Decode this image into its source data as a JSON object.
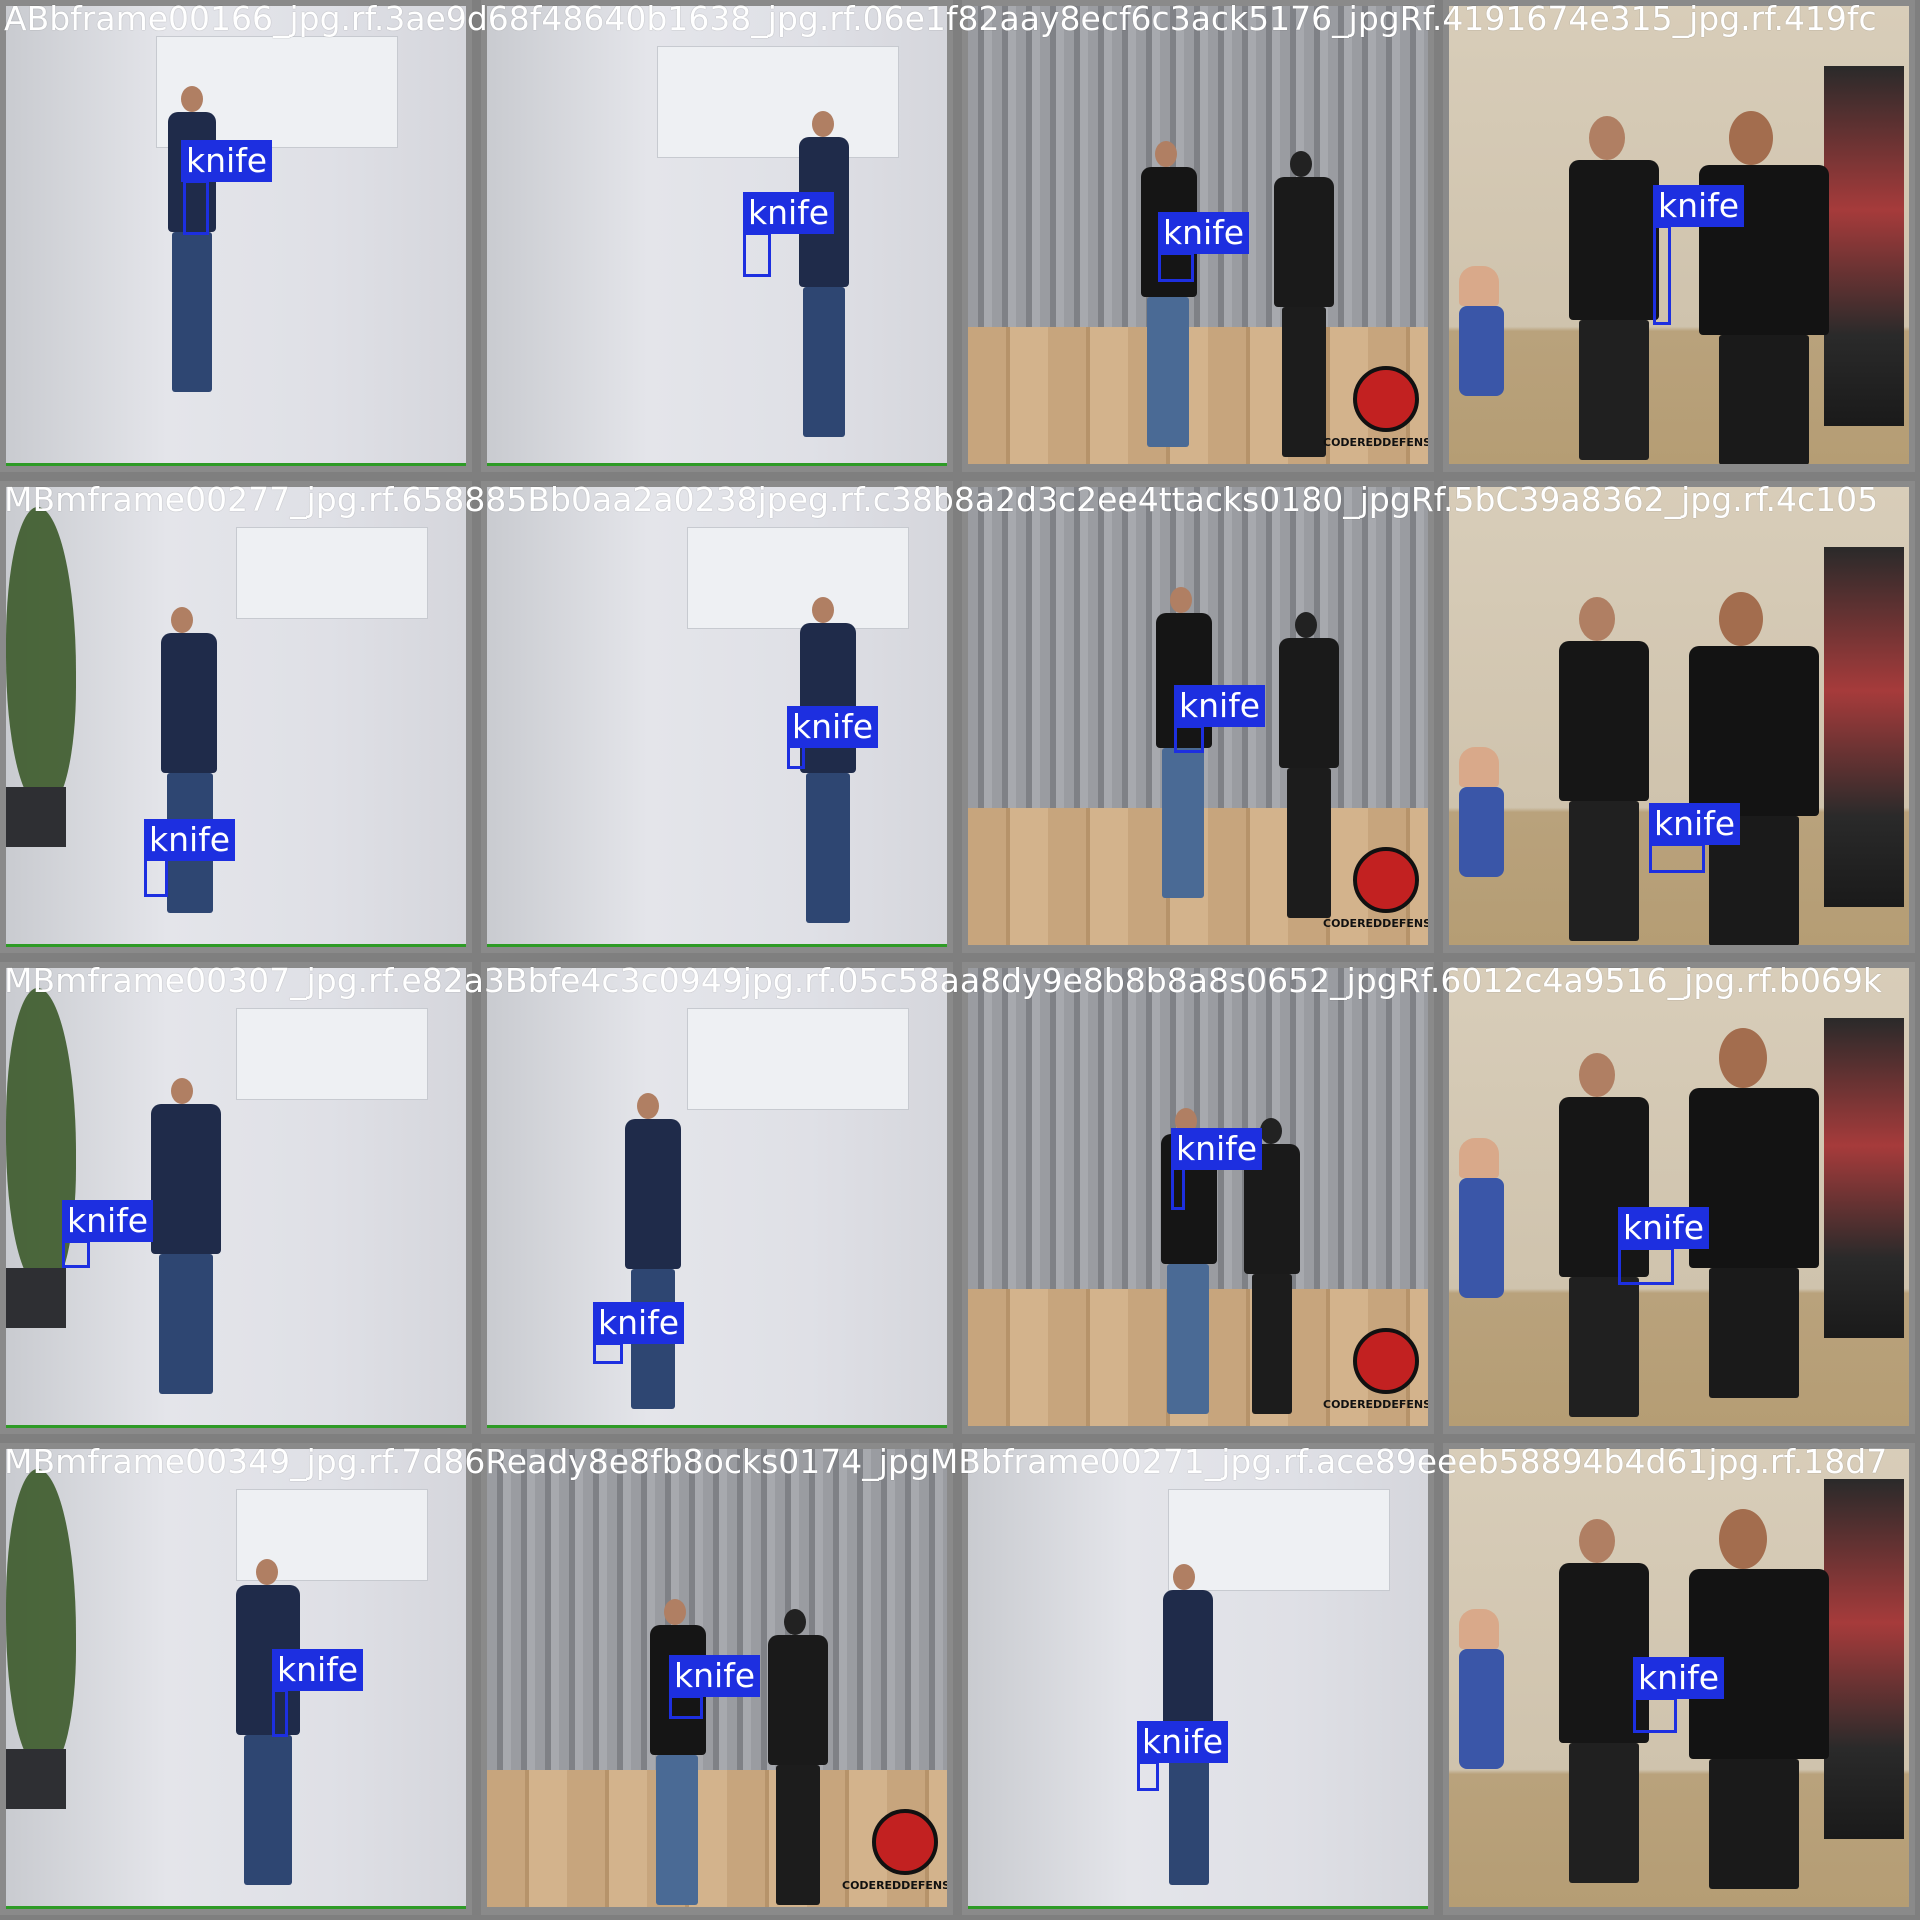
{
  "tiles": [
    {
      "caption": "ABbframe00166_jpg.rf.3ae9d68f48640b1638_jpg.rf.06e1f82aay8ecf6c3ack5176_jpgRf.4191674e315_jpg.rf.419fc",
      "box_label": "knife"
    },
    {
      "caption": "",
      "box_label": "knife"
    },
    {
      "caption": "",
      "box_label": "knife"
    },
    {
      "caption": "",
      "box_label": "knife"
    },
    {
      "caption": "MBmframe00277_jpg.rf.658885Bb0aa2a0238jpeg.rf.c38b8a2d3c2ee4ttacks0180_jpgRf.5bC39a8362_jpg.rf.4c105",
      "box_label": "knife"
    },
    {
      "caption": "",
      "box_label": "knife"
    },
    {
      "caption": "",
      "box_label": "knife"
    },
    {
      "caption": "",
      "box_label": "knife"
    },
    {
      "caption": "MBmframe00307_jpg.rf.e82a3Bbfe4c3c0949jpg.rf.05c58aa8dy9e8b8b8a8s0652_jpgRf.6012c4a9516_jpg.rf.b069k",
      "box_label": "knife"
    },
    {
      "caption": "",
      "box_label": "knife"
    },
    {
      "caption": "",
      "box_label": "knife"
    },
    {
      "caption": "",
      "box_label": "knife"
    },
    {
      "caption": "MBmframe00349_jpg.rf.7d86Ready8e8fb8ocks0174_jpgMBbframe00271_jpg.rf.ace89eeeb58894b4d61jpg.rf.18d7",
      "box_label": "knife"
    },
    {
      "caption": "",
      "box_label": "knife"
    },
    {
      "caption": "",
      "box_label": "knife"
    },
    {
      "caption": "",
      "box_label": "knife"
    }
  ],
  "logo_text": "CODEREDDEFENSE",
  "colors": {
    "box": "#1d2fe0",
    "label_text": "#ffffff",
    "background": "#7f7f7f",
    "baseline": "#2e9b26"
  }
}
